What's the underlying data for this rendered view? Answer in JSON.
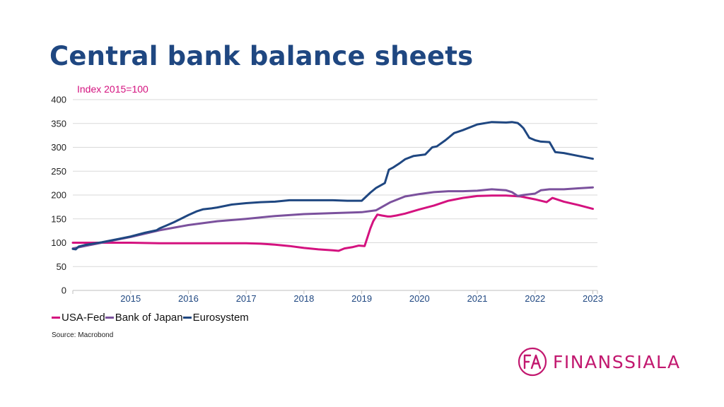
{
  "title": "Central bank balance sheets",
  "subtitle": "Index 2015=100",
  "source": "Source: Macrobond",
  "brand": {
    "name": "FINANSSIALA",
    "monogram": "FA",
    "color": "#c2186f"
  },
  "chart_data": {
    "type": "line",
    "title": "Central bank balance sheets",
    "ylabel": "Index 2015=100",
    "xlabel": "",
    "ylim": [
      0,
      400
    ],
    "yticks": [
      0,
      50,
      100,
      150,
      200,
      250,
      300,
      350,
      400
    ],
    "xticks": [
      "2015",
      "2016",
      "2017",
      "2018",
      "2019",
      "2020",
      "2021",
      "2022",
      "2023"
    ],
    "xlim": [
      2014.5,
      2023.58
    ],
    "grid": true,
    "legend_position": "bottom-left",
    "series": [
      {
        "name": "USA-Fed",
        "color": "#d4127f",
        "x": [
          2014.5,
          2015.0,
          2015.5,
          2016.0,
          2016.5,
          2017.0,
          2017.5,
          2017.75,
          2018.0,
          2018.25,
          2018.5,
          2018.75,
          2019.0,
          2019.1,
          2019.2,
          2019.35,
          2019.45,
          2019.55,
          2019.65,
          2019.7,
          2019.77,
          2019.85,
          2019.95,
          2020.0,
          2020.1,
          2020.25,
          2020.5,
          2020.75,
          2021.0,
          2021.25,
          2021.5,
          2021.75,
          2022.0,
          2022.25,
          2022.5,
          2022.6,
          2022.7,
          2022.8,
          2023.0,
          2023.25,
          2023.5
        ],
        "values": [
          100,
          100,
          100,
          99,
          99,
          99,
          99,
          98,
          96,
          93,
          89,
          86,
          84,
          83,
          88,
          91,
          94,
          93,
          130,
          145,
          159,
          157,
          155,
          155,
          157,
          161,
          170,
          178,
          188,
          194,
          198,
          199,
          199,
          197,
          191,
          188,
          185,
          194,
          186,
          179,
          171
        ]
      },
      {
        "name": "Bank of Japan",
        "color": "#7b519d",
        "x": [
          2014.5,
          2015.0,
          2015.5,
          2016.0,
          2016.5,
          2017.0,
          2017.5,
          2018.0,
          2018.5,
          2019.0,
          2019.5,
          2019.75,
          2020.0,
          2020.25,
          2020.5,
          2020.75,
          2021.0,
          2021.25,
          2021.5,
          2021.75,
          2022.0,
          2022.1,
          2022.2,
          2022.3,
          2022.5,
          2022.6,
          2022.75,
          2023.0,
          2023.25,
          2023.5
        ],
        "values": [
          88,
          100,
          112,
          126,
          137,
          145,
          150,
          156,
          160,
          162,
          164,
          168,
          185,
          197,
          202,
          206,
          208,
          208,
          209,
          212,
          210,
          206,
          198,
          200,
          203,
          210,
          212,
          212,
          214,
          216
        ]
      },
      {
        "name": "Eurosystem",
        "color": "#1f4781",
        "x": [
          2014.5,
          2014.55,
          2014.6,
          2014.7,
          2015.0,
          2015.25,
          2015.5,
          2015.75,
          2015.95,
          2016.0,
          2016.1,
          2016.25,
          2016.5,
          2016.65,
          2016.75,
          2016.9,
          2017.0,
          2017.25,
          2017.5,
          2017.75,
          2018.0,
          2018.25,
          2018.5,
          2018.75,
          2019.0,
          2019.25,
          2019.5,
          2019.65,
          2019.75,
          2019.9,
          2019.97,
          2020.05,
          2020.15,
          2020.25,
          2020.4,
          2020.6,
          2020.72,
          2020.8,
          2020.95,
          2021.1,
          2021.25,
          2021.5,
          2021.75,
          2022.0,
          2022.1,
          2022.2,
          2022.25,
          2022.3,
          2022.4,
          2022.5,
          2022.6,
          2022.75,
          2022.85,
          2023.0,
          2023.25,
          2023.5
        ],
        "values": [
          87,
          86,
          92,
          95,
          101,
          107,
          113,
          121,
          126,
          130,
          135,
          143,
          158,
          166,
          170,
          172,
          174,
          180,
          183,
          185,
          186,
          189,
          189,
          189,
          189,
          188,
          188,
          205,
          215,
          225,
          253,
          258,
          266,
          275,
          282,
          285,
          300,
          302,
          315,
          330,
          336,
          348,
          353,
          352,
          353,
          351,
          346,
          340,
          320,
          315,
          312,
          311,
          290,
          288,
          282,
          276
        ]
      }
    ]
  }
}
